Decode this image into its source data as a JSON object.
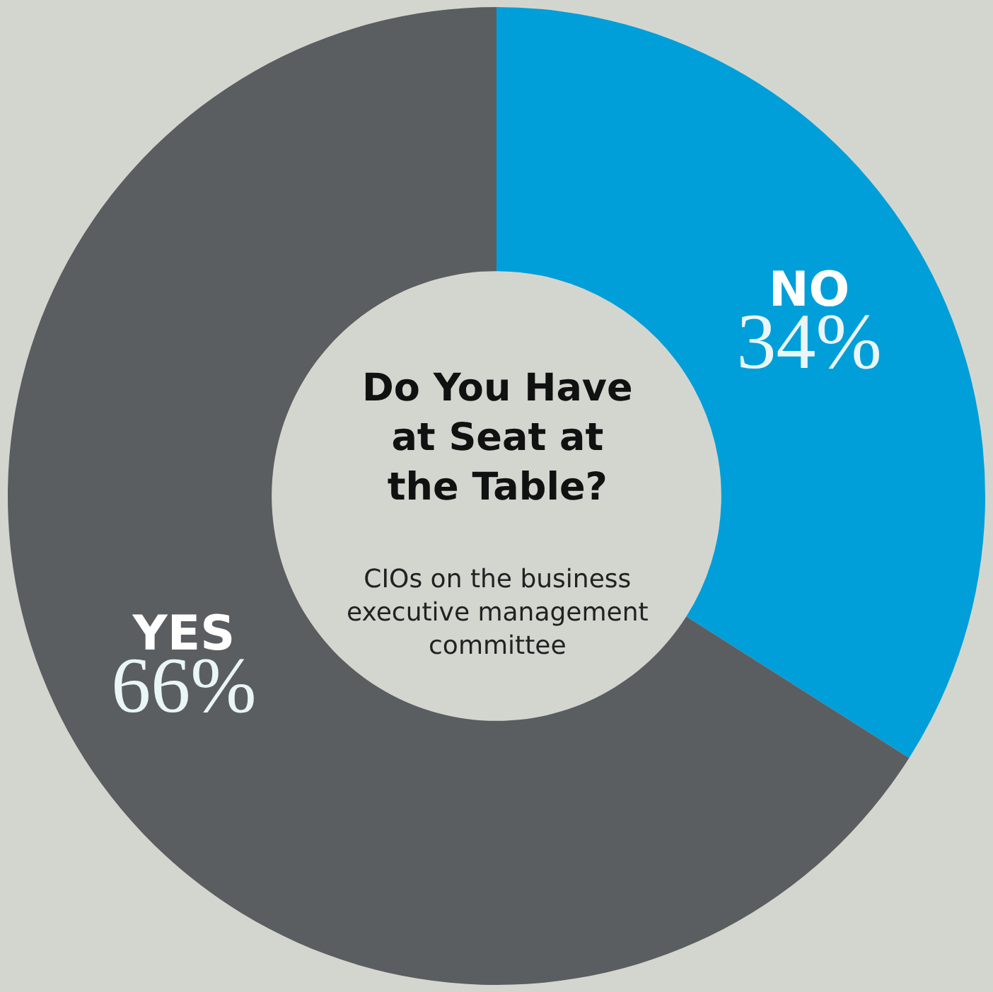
{
  "chart_data": {
    "type": "donut",
    "title": "Do You Have at Seat at the Table?",
    "subtitle": "CIOs on the business executive management committee",
    "categories": [
      "NO",
      "YES"
    ],
    "values": [
      34,
      66
    ],
    "value_labels": [
      "34%",
      "66%"
    ],
    "colors": [
      "#009fd9",
      "#5b5e60"
    ],
    "legend": false
  }
}
